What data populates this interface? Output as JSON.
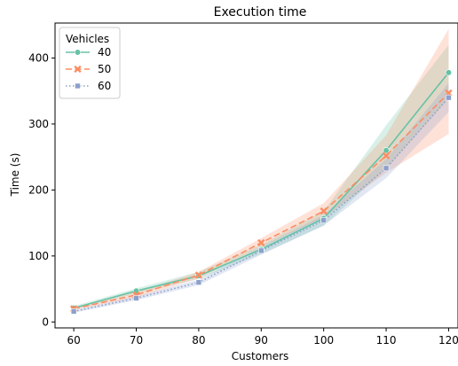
{
  "chart_data": {
    "type": "line",
    "title": "Execution time",
    "xlabel": "Customers",
    "ylabel": "Time (s)",
    "x": [
      60,
      70,
      80,
      90,
      100,
      110,
      120
    ],
    "xticks": [
      60,
      70,
      80,
      90,
      100,
      110,
      120
    ],
    "yticks": [
      0,
      100,
      200,
      300,
      400
    ],
    "xlim": [
      57,
      121.5
    ],
    "ylim": [
      -9,
      453
    ],
    "grid": false,
    "legend": {
      "title": "Vehicles",
      "placement": "top-left"
    },
    "series": [
      {
        "name": "40",
        "color": "#66c2a5",
        "dash": "solid",
        "marker": "circle",
        "values": [
          21,
          47,
          70,
          110,
          157,
          260,
          378
        ],
        "ci_low": [
          19,
          43,
          65,
          103,
          146,
          232,
          338
        ],
        "ci_high": [
          24,
          51,
          76,
          117,
          168,
          298,
          420
        ]
      },
      {
        "name": "50",
        "color": "#fc8d62",
        "dash": "dashed",
        "marker": "x",
        "values": [
          20,
          41,
          71,
          120,
          168,
          252,
          347
        ],
        "ci_low": [
          18,
          37,
          66,
          113,
          158,
          226,
          285
        ],
        "ci_high": [
          22,
          45,
          76,
          127,
          180,
          283,
          444
        ]
      },
      {
        "name": "60",
        "color": "#8da0cb",
        "dash": "dotted",
        "marker": "square",
        "values": [
          16,
          36,
          60,
          108,
          154,
          233,
          340
        ],
        "ci_low": [
          14,
          33,
          56,
          102,
          146,
          218,
          318
        ],
        "ci_high": [
          18,
          39,
          64,
          114,
          162,
          247,
          362
        ]
      }
    ]
  }
}
